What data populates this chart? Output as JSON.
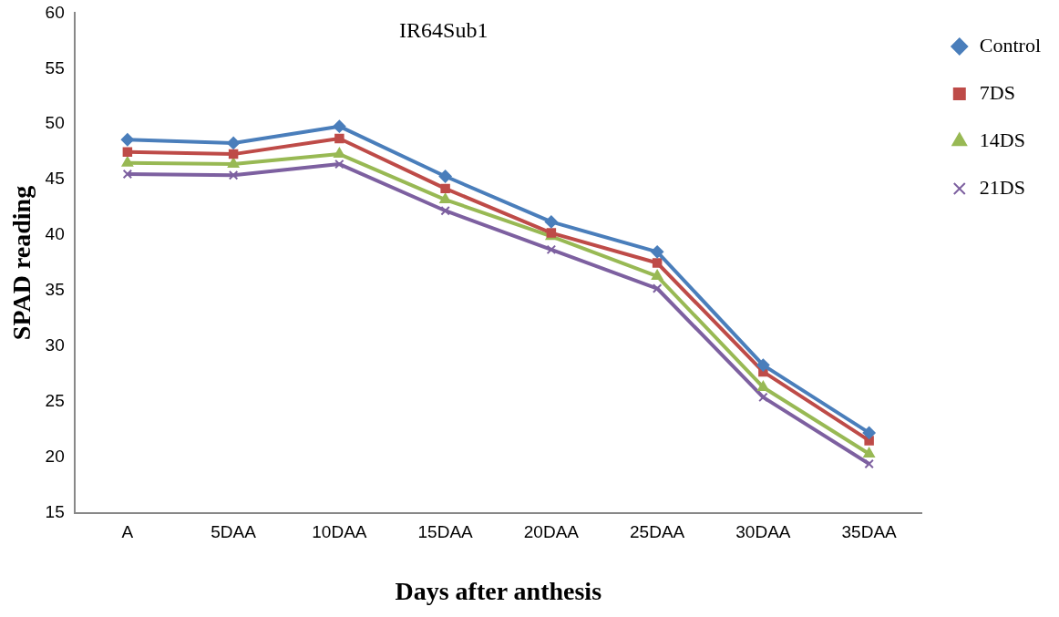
{
  "chart_data": {
    "type": "line",
    "title": "IR64Sub1",
    "xlabel": "Days after anthesis",
    "ylabel": "SPAD reading",
    "categories": [
      "A",
      "5DAA",
      "10DAA",
      "15DAA",
      "20DAA",
      "25DAA",
      "30DAA",
      "35DAA"
    ],
    "series": [
      {
        "name": "Control",
        "color": "#4a7ebb",
        "marker": "diamond",
        "values": [
          48.6,
          48.3,
          49.8,
          45.3,
          41.2,
          38.5,
          28.3,
          22.2
        ]
      },
      {
        "name": "7DS",
        "color": "#be4b48",
        "marker": "square",
        "values": [
          47.5,
          47.3,
          48.7,
          44.2,
          40.2,
          37.5,
          27.7,
          21.5
        ]
      },
      {
        "name": "14DS",
        "color": "#98b954",
        "marker": "triangle",
        "values": [
          46.5,
          46.4,
          47.3,
          43.2,
          39.9,
          36.3,
          26.3,
          20.3
        ]
      },
      {
        "name": "21DS",
        "color": "#7d60a0",
        "marker": "cross",
        "values": [
          45.5,
          45.4,
          46.4,
          42.2,
          38.7,
          35.2,
          25.4,
          19.4
        ]
      }
    ],
    "ylim": [
      15,
      60
    ],
    "yticks": [
      15,
      20,
      25,
      30,
      35,
      40,
      45,
      50,
      55,
      60
    ],
    "grid": false,
    "legend": "right",
    "line_style": "solid"
  }
}
